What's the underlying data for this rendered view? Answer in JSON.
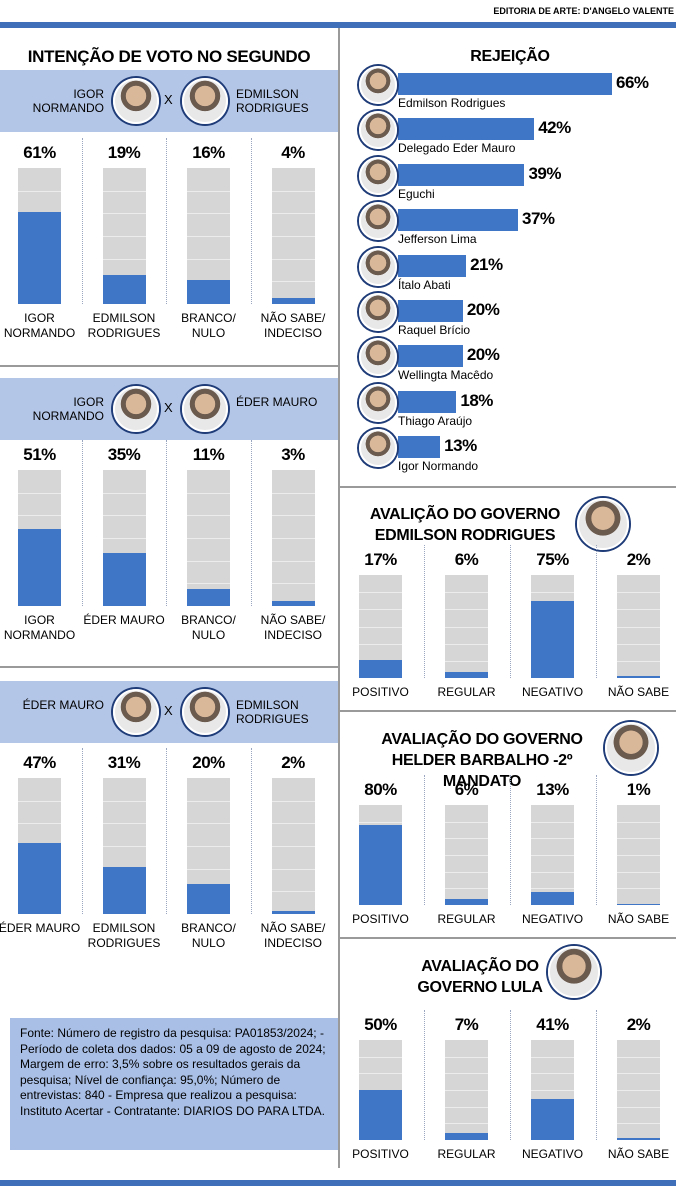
{
  "credit": "EDITORIA DE ARTE: D'ANGELO VALENTE",
  "title": "INTENÇÃO DE VOTO NO SEGUNDO TURNO",
  "source": "Fonte: Número de registro da pesquisa: PA01853/2024; - Período de coleta dos dados: 05 a 09 de agosto de 2024; Margem de erro: 3,5% sobre os resultados gerais da pesquisa; Nível de confiança: 95,0%; Número de entrevistas: 840 - Empresa que realizou a pesquisa: Instituto Acertar - Contratante: DIARIOS DO PARA LTDA.",
  "chart_data": [
    {
      "type": "bar",
      "candidates": [
        "IGOR NORMANDO",
        "EDMILSON RODRIGUES"
      ],
      "versus": "X",
      "categories": [
        "IGOR NORMANDO",
        "EDMILSON RODRIGUES",
        "BRANCO/ NULO",
        "NÃO SABE/ INDECISO"
      ],
      "values": [
        61,
        19,
        16,
        4
      ],
      "value_labels": [
        "61%",
        "19%",
        "16%",
        "4%"
      ],
      "ylim": [
        0,
        90
      ],
      "color": "#3f76c5"
    },
    {
      "type": "bar",
      "candidates": [
        "IGOR NORMANDO",
        "ÉDER MAURO"
      ],
      "versus": "X",
      "categories": [
        "IGOR NORMANDO",
        "ÉDER MAURO",
        "BRANCO/ NULO",
        "NÃO SABE/ INDECISO"
      ],
      "values": [
        51,
        35,
        11,
        3
      ],
      "value_labels": [
        "51%",
        "35%",
        "11%",
        "3%"
      ],
      "ylim": [
        0,
        90
      ],
      "color": "#3f76c5"
    },
    {
      "type": "bar",
      "candidates": [
        "ÉDER MAURO",
        "EDMILSON RODRIGUES"
      ],
      "versus": "X",
      "categories": [
        "ÉDER MAURO",
        "EDMILSON RODRIGUES",
        "BRANCO/ NULO",
        "NÃO SABE/ INDECISO"
      ],
      "values": [
        47,
        31,
        20,
        2
      ],
      "value_labels": [
        "47%",
        "31%",
        "20%",
        "2%"
      ],
      "ylim": [
        0,
        90
      ],
      "color": "#3f76c5"
    },
    {
      "type": "barh",
      "title": "REJEIÇÃO",
      "categories": [
        "Edmilson Rodrigues",
        "Delegado Eder Mauro",
        "Eguchi",
        "Jefferson Lima",
        "Ítalo Abati",
        "Raquel Brício",
        "Wellingta Macêdo",
        "Thiago Araújo",
        "Igor Normando"
      ],
      "values": [
        66,
        42,
        39,
        37,
        21,
        20,
        20,
        18,
        13
      ],
      "value_labels": [
        "66%",
        "42%",
        "39%",
        "37%",
        "21%",
        "20%",
        "20%",
        "18%",
        "13%"
      ],
      "xlim": [
        0,
        70
      ],
      "color": "#3f76c5"
    },
    {
      "type": "bar",
      "title": "AVALIÇÃO DO GOVERNO EDMILSON RODRIGUES",
      "categories": [
        "POSITIVO",
        "REGULAR",
        "NEGATIVO",
        "NÃO SABE"
      ],
      "values": [
        17,
        6,
        75,
        2
      ],
      "value_labels": [
        "17%",
        "6%",
        "75%",
        "2%"
      ],
      "ylim": [
        0,
        100
      ],
      "color": "#3f76c5"
    },
    {
      "type": "bar",
      "title": "AVALIAÇÃO DO GOVERNO HELDER BARBALHO -2º MANDATO",
      "categories": [
        "POSITIVO",
        "REGULAR",
        "NEGATIVO",
        "NÃO SABE"
      ],
      "values": [
        80,
        6,
        13,
        1
      ],
      "value_labels": [
        "80%",
        "6%",
        "13%",
        "1%"
      ],
      "ylim": [
        0,
        100
      ],
      "color": "#3f76c5"
    },
    {
      "type": "bar",
      "title": "AVALIAÇÃO DO GOVERNO LULA",
      "categories": [
        "POSITIVO",
        "REGULAR",
        "NEGATIVO",
        "NÃO SABE"
      ],
      "values": [
        50,
        7,
        41,
        2
      ],
      "value_labels": [
        "50%",
        "7%",
        "41%",
        "2%"
      ],
      "ylim": [
        0,
        100
      ],
      "color": "#3f76c5"
    }
  ]
}
